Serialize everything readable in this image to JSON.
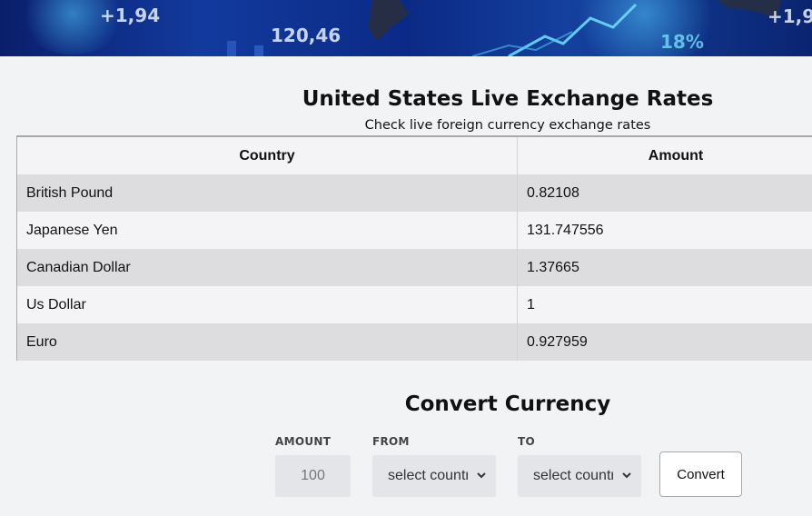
{
  "banner": {
    "texts": [
      "+1,94",
      "120,46",
      "18%",
      "+1,9"
    ]
  },
  "rates": {
    "title": "United States Live Exchange Rates",
    "subtitle": "Check live foreign currency exchange rates",
    "columns": [
      "Country",
      "Amount"
    ],
    "rows": [
      {
        "country": "British Pound",
        "amount": "0.82108"
      },
      {
        "country": "Japanese Yen",
        "amount": "131.747556"
      },
      {
        "country": "Canadian Dollar",
        "amount": "1.37665"
      },
      {
        "country": "Us Dollar",
        "amount": "1"
      },
      {
        "country": "Euro",
        "amount": "0.927959"
      }
    ]
  },
  "converter": {
    "title": "Convert Currency",
    "amount_label": "AMOUNT",
    "amount_placeholder": "100",
    "from_label": "FROM",
    "from_value": "select country",
    "to_label": "TO",
    "to_value": "select country",
    "convert_label": "Convert"
  },
  "colors": {
    "page_bg": "#f2f3f5",
    "row_shaded": "#dddde0",
    "field_bg": "#e4e5e8"
  },
  "icons": {
    "select_arrow": "chevron-down-icon"
  }
}
